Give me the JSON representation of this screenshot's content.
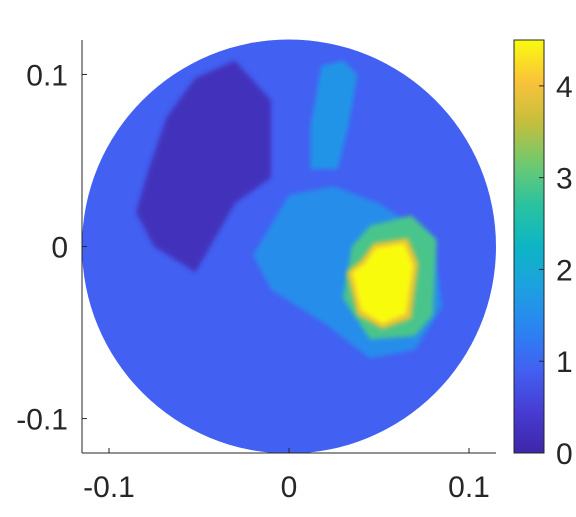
{
  "chart_data": {
    "type": "heatmap",
    "title": "",
    "xlabel": "",
    "ylabel": "",
    "xlim": [
      -0.115,
      0.115
    ],
    "ylim": [
      -0.12,
      0.12
    ],
    "x_ticks": [
      {
        "value": -0.1,
        "label": "-0.1"
      },
      {
        "value": 0,
        "label": "0"
      },
      {
        "value": 0.1,
        "label": "0.1"
      }
    ],
    "y_ticks": [
      {
        "value": 0.1,
        "label": "0.1"
      },
      {
        "value": 0,
        "label": "0"
      },
      {
        "value": -0.1,
        "label": "-0.1"
      }
    ],
    "domain": {
      "shape": "circle",
      "center": [
        0,
        0
      ],
      "radius": 0.115
    },
    "background_value": 0.9,
    "regions": [
      {
        "region": "dark-inclusion",
        "value": 0.2,
        "points": [
          [
            -0.052,
            0.098
          ],
          [
            -0.03,
            0.108
          ],
          [
            -0.01,
            0.085
          ],
          [
            -0.01,
            0.04
          ],
          [
            -0.03,
            0.025
          ],
          [
            -0.052,
            -0.015
          ],
          [
            -0.075,
            0.0
          ],
          [
            -0.085,
            0.02
          ],
          [
            -0.078,
            0.045
          ],
          [
            -0.068,
            0.075
          ]
        ]
      },
      {
        "region": "light-blue-strip",
        "value": 1.6,
        "points": [
          [
            0.018,
            0.105
          ],
          [
            0.03,
            0.108
          ],
          [
            0.038,
            0.1
          ],
          [
            0.033,
            0.07
          ],
          [
            0.027,
            0.045
          ],
          [
            0.012,
            0.045
          ],
          [
            0.012,
            0.07
          ]
        ]
      },
      {
        "region": "light-blue-center",
        "value": 1.5,
        "points": [
          [
            0.0,
            0.03
          ],
          [
            0.025,
            0.035
          ],
          [
            0.05,
            0.025
          ],
          [
            0.065,
            0.015
          ],
          [
            0.08,
            0.005
          ],
          [
            0.085,
            -0.035
          ],
          [
            0.07,
            -0.06
          ],
          [
            0.045,
            -0.065
          ],
          [
            0.02,
            -0.045
          ],
          [
            -0.01,
            -0.025
          ],
          [
            -0.02,
            -0.005
          ]
        ]
      },
      {
        "region": "green-ring",
        "value": 2.9,
        "points": [
          [
            0.045,
            0.012
          ],
          [
            0.068,
            0.018
          ],
          [
            0.082,
            0.004
          ],
          [
            0.08,
            -0.04
          ],
          [
            0.07,
            -0.052
          ],
          [
            0.045,
            -0.054
          ],
          [
            0.03,
            -0.03
          ],
          [
            0.035,
            0.0
          ]
        ]
      },
      {
        "region": "orange-rim",
        "value": 3.9,
        "points": [
          [
            0.047,
            0.002
          ],
          [
            0.066,
            0.005
          ],
          [
            0.072,
            -0.01
          ],
          [
            0.068,
            -0.042
          ],
          [
            0.052,
            -0.048
          ],
          [
            0.038,
            -0.04
          ],
          [
            0.032,
            -0.015
          ],
          [
            0.04,
            -0.008
          ]
        ]
      },
      {
        "region": "yellow-core",
        "value": 4.5,
        "points": [
          [
            0.048,
            -0.001
          ],
          [
            0.064,
            0.002
          ],
          [
            0.069,
            -0.011
          ],
          [
            0.065,
            -0.039
          ],
          [
            0.052,
            -0.045
          ],
          [
            0.04,
            -0.037
          ],
          [
            0.035,
            -0.015
          ],
          [
            0.042,
            -0.01
          ]
        ]
      }
    ],
    "colorbar": {
      "colormap": "parula",
      "range": [
        0,
        4.5
      ],
      "ticks": [
        {
          "value": 0,
          "label": "0"
        },
        {
          "value": 1,
          "label": "1"
        },
        {
          "value": 2,
          "label": "2"
        },
        {
          "value": 3,
          "label": "3"
        },
        {
          "value": 4,
          "label": "4"
        }
      ]
    },
    "grid": false,
    "legend": "none"
  }
}
